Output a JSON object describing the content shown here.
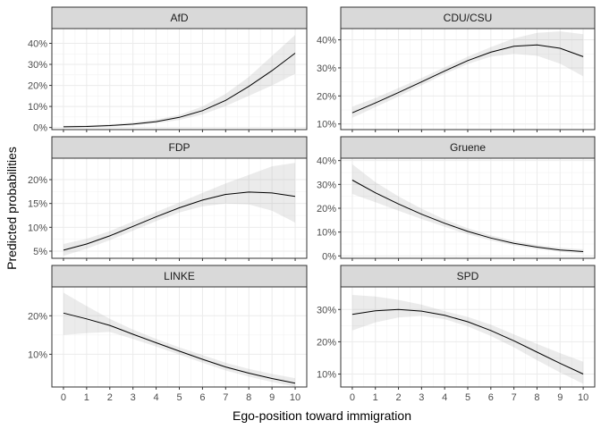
{
  "chart_data": {
    "type": "line",
    "xlabel": "Ego-position toward immigration",
    "ylabel": "Predicted probabilities",
    "x": [
      0,
      1,
      2,
      3,
      4,
      5,
      6,
      7,
      8,
      9,
      10
    ],
    "x_ticks": [
      "0",
      "1",
      "2",
      "3",
      "4",
      "5",
      "6",
      "7",
      "8",
      "9",
      "10"
    ],
    "xlim": [
      -0.5,
      10.5
    ],
    "grid": true,
    "panels": [
      {
        "name": "AfD",
        "ylim": [
          -1,
          47
        ],
        "y_ticks": [
          0,
          10,
          20,
          30,
          40
        ],
        "y_tick_labels": [
          "0%",
          "10%",
          "20%",
          "30%",
          "40%"
        ],
        "values": [
          0.3,
          0.5,
          0.9,
          1.6,
          2.8,
          4.8,
          8.0,
          12.9,
          19.5,
          27.0,
          35.3
        ],
        "lower": [
          0.1,
          0.2,
          0.5,
          1.0,
          2.0,
          3.6,
          6.2,
          10.2,
          15.0,
          20.0,
          25.5
        ],
        "upper": [
          0.8,
          1.0,
          1.5,
          2.4,
          3.8,
          6.0,
          10.0,
          16.0,
          24.0,
          34.0,
          44.0
        ]
      },
      {
        "name": "CDU/CSU",
        "ylim": [
          8,
          44
        ],
        "y_ticks": [
          10,
          20,
          30,
          40
        ],
        "y_tick_labels": [
          "10%",
          "20%",
          "30%",
          "40%"
        ],
        "values": [
          14.0,
          17.5,
          21.2,
          25.0,
          28.9,
          32.6,
          35.6,
          37.7,
          38.2,
          37.0,
          34.0
        ],
        "lower": [
          12.2,
          16.0,
          19.8,
          23.8,
          27.8,
          31.4,
          34.0,
          35.0,
          34.3,
          31.5,
          27.0
        ],
        "upper": [
          16.2,
          19.2,
          22.8,
          26.4,
          30.2,
          34.0,
          37.4,
          40.5,
          42.5,
          43.0,
          42.0
        ]
      },
      {
        "name": "FDP",
        "ylim": [
          3.5,
          24.5
        ],
        "y_ticks": [
          5,
          10,
          15,
          20
        ],
        "y_tick_labels": [
          "5%",
          "10%",
          "15%",
          "20%"
        ],
        "values": [
          5.2,
          6.5,
          8.2,
          10.2,
          12.2,
          14.1,
          15.7,
          16.9,
          17.4,
          17.2,
          16.5
        ],
        "lower": [
          4.0,
          5.5,
          7.3,
          9.3,
          11.3,
          13.1,
          14.4,
          15.0,
          14.8,
          13.5,
          11.0
        ],
        "upper": [
          6.5,
          7.6,
          9.2,
          11.2,
          13.2,
          15.2,
          17.2,
          19.2,
          21.0,
          22.8,
          23.5
        ]
      },
      {
        "name": "Gruene",
        "ylim": [
          -1,
          41
        ],
        "y_ticks": [
          0,
          10,
          20,
          30,
          40
        ],
        "y_tick_labels": [
          "0%",
          "10%",
          "20%",
          "30%",
          "40%"
        ],
        "values": [
          31.8,
          26.5,
          21.8,
          17.5,
          13.7,
          10.3,
          7.5,
          5.3,
          3.7,
          2.5,
          1.8
        ],
        "lower": [
          26.0,
          22.5,
          19.0,
          15.5,
          12.2,
          9.1,
          6.5,
          4.4,
          2.9,
          1.7,
          1.0
        ],
        "upper": [
          38.5,
          31.0,
          25.0,
          19.8,
          15.3,
          11.6,
          8.6,
          6.3,
          4.6,
          3.4,
          2.8
        ]
      },
      {
        "name": "LINKE",
        "ylim": [
          1.5,
          27.5
        ],
        "y_ticks": [
          10,
          20
        ],
        "y_tick_labels": [
          "10%",
          "20%"
        ],
        "values": [
          20.7,
          19.2,
          17.5,
          15.2,
          13.0,
          10.8,
          8.7,
          6.7,
          5.1,
          3.7,
          2.5
        ],
        "lower": [
          15.0,
          15.5,
          15.8,
          14.0,
          12.0,
          9.9,
          7.8,
          5.8,
          4.2,
          2.8,
          1.6
        ],
        "upper": [
          26.0,
          22.5,
          19.2,
          16.4,
          14.0,
          11.8,
          9.8,
          7.8,
          6.2,
          4.9,
          3.8
        ]
      },
      {
        "name": "SPD",
        "ylim": [
          6,
          37
        ],
        "y_ticks": [
          10,
          20,
          30
        ],
        "y_tick_labels": [
          "10%",
          "20%",
          "30%"
        ],
        "values": [
          28.5,
          29.6,
          30.0,
          29.5,
          28.2,
          26.2,
          23.5,
          20.3,
          16.8,
          13.3,
          10.0
        ],
        "lower": [
          23.5,
          26.0,
          27.5,
          28.0,
          27.0,
          24.8,
          21.8,
          18.3,
          14.3,
          10.5,
          7.0
        ],
        "upper": [
          34.5,
          34.0,
          33.0,
          31.5,
          29.5,
          27.7,
          25.3,
          22.3,
          19.3,
          16.5,
          13.8
        ]
      }
    ]
  }
}
